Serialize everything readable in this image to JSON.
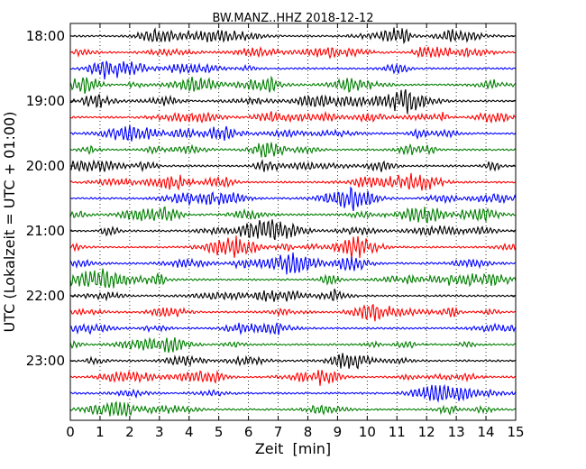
{
  "chart_data": {
    "type": "line",
    "chart_kind": "helicorder (seismogram drum plot)",
    "title": "BW.MANZ..HHZ 2018-12-12",
    "xlabel": "Zeit  [min]",
    "ylabel": "UTC (Lokalzeit = UTC + 01:00)",
    "xlim": [
      0,
      15
    ],
    "x_ticks": [
      "0",
      "1",
      "2",
      "3",
      "4",
      "5",
      "6",
      "7",
      "8",
      "9",
      "10",
      "11",
      "12",
      "13",
      "14",
      "15"
    ],
    "y_tick_labels": [
      "18:00",
      "19:00",
      "20:00",
      "21:00",
      "22:00",
      "23:00"
    ],
    "traces_per_hour": 4,
    "trace_count": 24,
    "trace_minutes_per_line": 15,
    "trace_colors": [
      "#000000",
      "#ff0000",
      "#0000ff",
      "#007f00"
    ],
    "grid": "vertical dotted lines at each minute",
    "legend": "none"
  }
}
